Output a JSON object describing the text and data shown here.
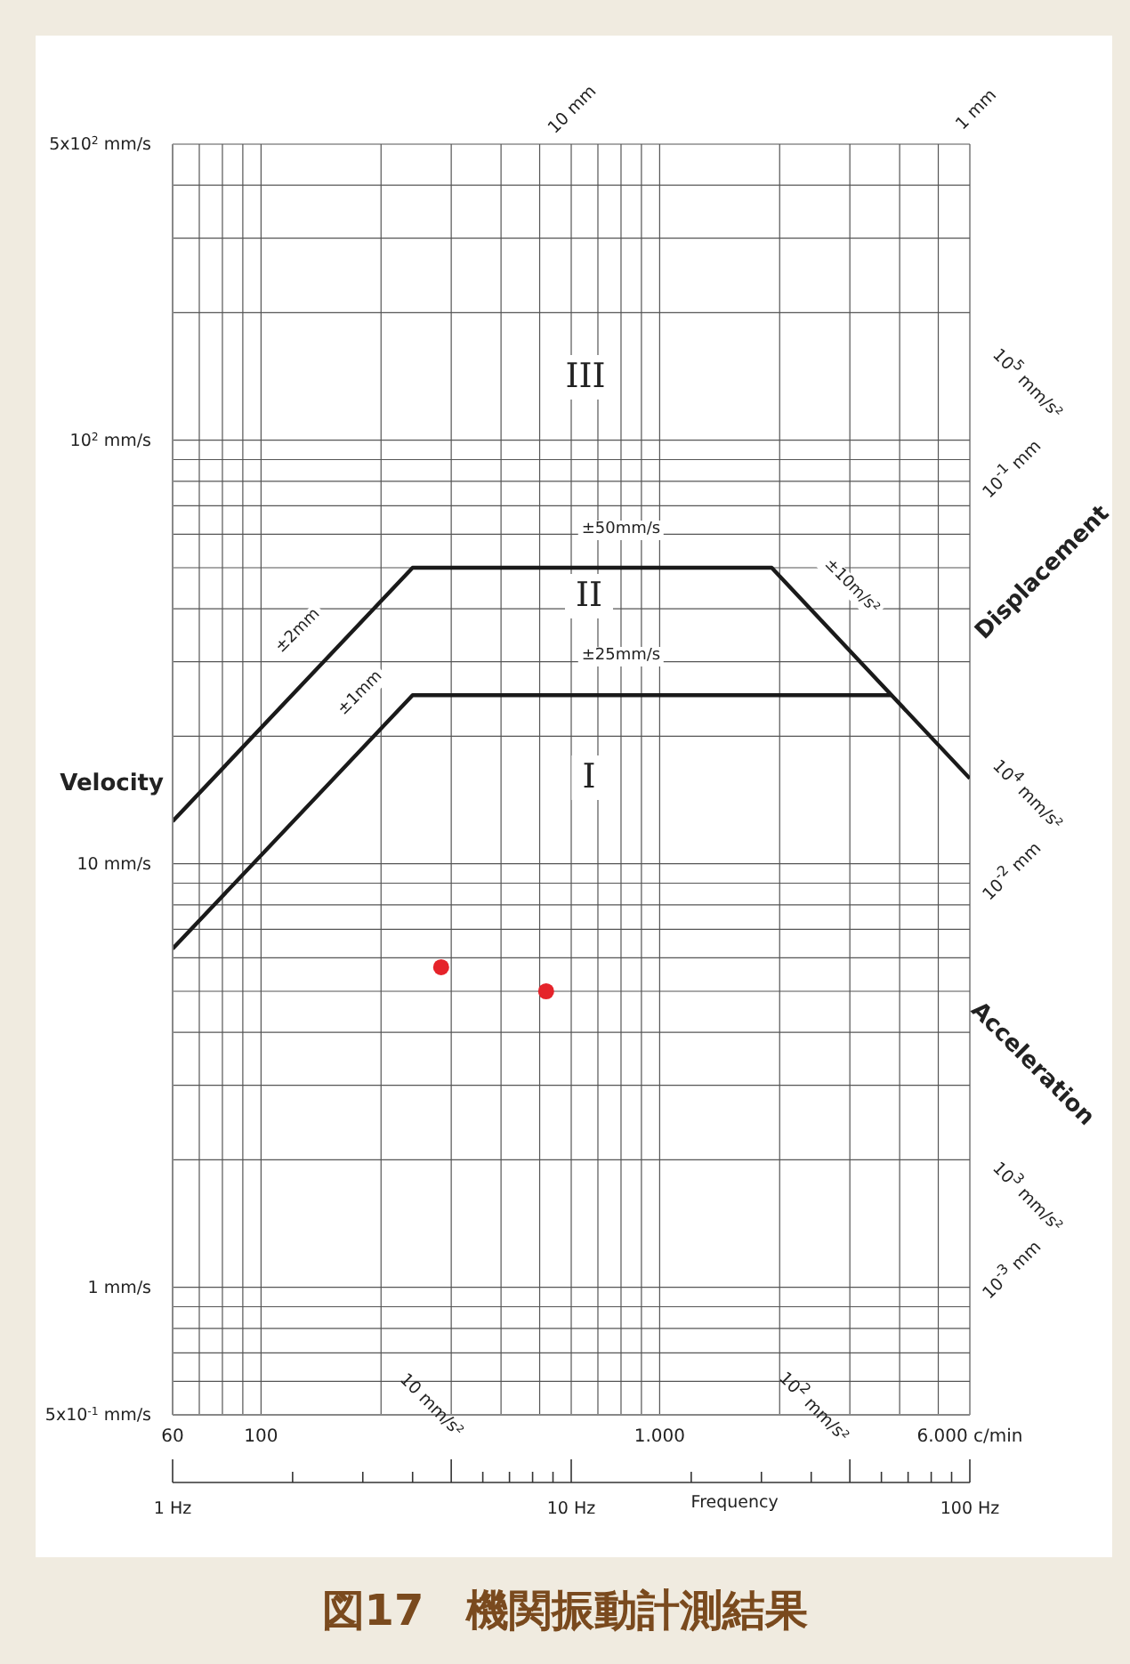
{
  "chart_data": {
    "type": "line",
    "title": "図17　機関振動計測結果",
    "xlabel": "Frequency",
    "ylabel": "Velocity",
    "log": "xy",
    "grid": true,
    "marker": "none",
    "line_style": "solid",
    "xlim": [
      60,
      6000
    ],
    "xticks": [
      60,
      {
        "value": 70,
        "label": null
      },
      {
        "value": 80,
        "label": null
      },
      {
        "value": 90,
        "label": null
      },
      100,
      {
        "value": 200,
        "label": null
      },
      {
        "value": 300,
        "label": null
      },
      {
        "value": 400,
        "label": null
      },
      {
        "value": 500,
        "label": null
      },
      {
        "value": 600,
        "label": null
      },
      {
        "value": 700,
        "label": null
      },
      {
        "value": 800,
        "label": null
      },
      {
        "value": 900,
        "label": null
      },
      {
        "value": 1000,
        "label": "1.000"
      },
      {
        "value": 2000,
        "label": null
      },
      {
        "value": 3000,
        "label": null
      },
      {
        "value": 4000,
        "label": null
      },
      {
        "value": 5000,
        "label": null
      },
      {
        "value": 6000,
        "label": "6.000 c/min"
      }
    ],
    "ylim": [
      0.5,
      500
    ],
    "yticks": [
      {
        "value": 0.5,
        "label": "5x10$^{-1}$ mm/s"
      },
      {
        "value": 0.6,
        "label": null
      },
      {
        "value": 0.7,
        "label": null
      },
      {
        "value": 0.8,
        "label": null
      },
      {
        "value": 0.9,
        "label": null
      },
      {
        "value": 1,
        "label": "1 mm/s"
      },
      {
        "value": 2,
        "label": null
      },
      {
        "value": 3,
        "label": null
      },
      {
        "value": 4,
        "label": null
      },
      {
        "value": 5,
        "label": null
      },
      {
        "value": 6,
        "label": null
      },
      {
        "value": 7,
        "label": null
      },
      {
        "value": 8,
        "label": null
      },
      {
        "value": 9,
        "label": null
      },
      {
        "value": 10,
        "label": "10 mm/s"
      },
      {
        "value": 20,
        "label": null
      },
      {
        "value": 30,
        "label": null
      },
      {
        "value": 40,
        "label": null
      },
      {
        "value": 50,
        "label": null
      },
      {
        "value": 60,
        "label": null
      },
      {
        "value": 70,
        "label": null
      },
      {
        "value": 80,
        "label": null
      },
      {
        "value": 90,
        "label": null
      },
      {
        "value": 100,
        "label": "10$^{2}$ mm/s"
      },
      {
        "value": 200,
        "label": null
      },
      {
        "value": 300,
        "label": null
      },
      {
        "value": 400,
        "label": null
      },
      {
        "value": 500,
        "label": "5x10$^{2}$ mm/s"
      }
    ],
    "series": [
      {
        "color": "#1a1a1a",
        "x": [
          60,
          240,
          1910,
          6000
        ],
        "values": [
          12.6,
          50,
          50,
          15.9
        ]
      },
      {
        "color": "#1a1a1a",
        "x": [
          60,
          240,
          3820
        ],
        "values": [
          6.3,
          25,
          25
        ]
      },
      {
        "type": "scatter",
        "color": "#e5232a",
        "marker": "circle",
        "x": [
          283,
          519
        ],
        "values": [
          5.7,
          5.0
        ]
      }
    ],
    "annotations": [
      "±50mm/s",
      "±25mm/s",
      "±2mm",
      "±1mm",
      "±10m/s²",
      "III",
      "II",
      "I",
      "10 mm",
      "1 mm",
      "10$^{5}$ mm/s²",
      "10$^{-1}$ mm",
      "Displacement",
      "10$^{4}$ mm/s²",
      "10$^{-2}$ mm",
      "Acceleration",
      "10$^{3}$ mm/s²",
      "10$^{-3}$ mm",
      "10 mm/s²",
      "10$^{2}$ mm/s²",
      "1 Hz",
      "10 Hz",
      "100 Hz"
    ]
  }
}
